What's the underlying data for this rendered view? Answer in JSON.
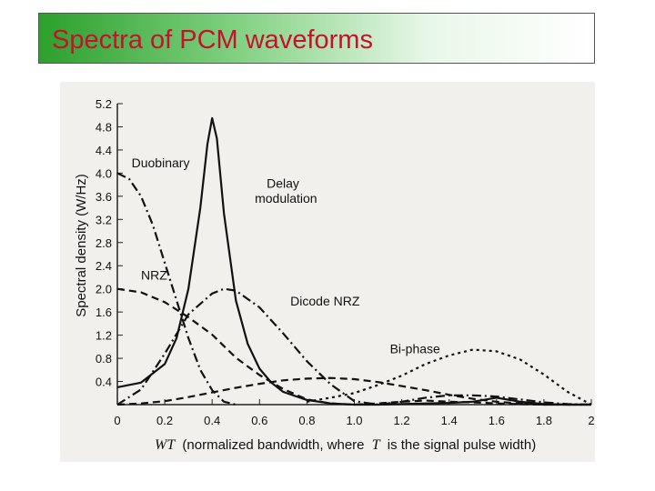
{
  "slide": {
    "title": "Spectra of PCM waveforms",
    "title_color": "#c8102e",
    "title_bg_accent": "#2ca02c"
  },
  "chart_data": {
    "type": "line",
    "title": "",
    "xlabel_prefix": "WT",
    "xlabel_prefix_italic_T": "T",
    "xlabel": "WT (normalized bandwidth, where T is the signal pulse width)",
    "xlabel_part1": "(normalized bandwidth, where",
    "xlabel_part2": "is the signal pulse width)",
    "ylabel": "Spectral density (W/Hz)",
    "xlim": [
      0,
      2
    ],
    "ylim": [
      0,
      5.2
    ],
    "x_ticks": [
      "0",
      "0.2",
      "0.4",
      "0.6",
      "0.8",
      "1.0",
      "1.2",
      "1.4",
      "1.6",
      "1.8",
      "2"
    ],
    "x_tick_values": [
      0,
      0.2,
      0.4,
      0.6,
      0.8,
      1.0,
      1.2,
      1.4,
      1.6,
      1.8,
      2.0
    ],
    "y_ticks": [
      "0.4",
      "0.8",
      "1.2",
      "1.6",
      "2.0",
      "2.4",
      "2.8",
      "3.2",
      "3.6",
      "4.0",
      "4.4",
      "4.8",
      "5.2"
    ],
    "y_tick_values": [
      0.4,
      0.8,
      1.2,
      1.6,
      2.0,
      2.4,
      2.8,
      3.2,
      3.6,
      4.0,
      4.4,
      4.8,
      5.2
    ],
    "grid": false,
    "legend": "inline labels",
    "series": [
      {
        "name": "NRZ",
        "style": "dashed",
        "x": [
          0,
          0.1,
          0.2,
          0.3,
          0.4,
          0.5,
          0.6,
          0.7,
          0.8,
          0.9,
          1.0,
          1.1,
          1.2,
          1.3,
          1.4,
          1.5,
          1.6,
          1.7,
          1.8,
          1.9,
          2.0
        ],
        "y": [
          2.0,
          1.94,
          1.77,
          1.51,
          1.21,
          0.81,
          0.51,
          0.27,
          0.09,
          0.02,
          0.0,
          0.02,
          0.05,
          0.07,
          0.05,
          0.04,
          0.02,
          0.01,
          0.0,
          0.0,
          0.0
        ]
      },
      {
        "name": "Duobinary",
        "style": "dash-dot",
        "x": [
          0,
          0.05,
          0.1,
          0.15,
          0.2,
          0.25,
          0.3,
          0.35,
          0.4,
          0.45,
          0.5
        ],
        "y": [
          4.0,
          3.9,
          3.6,
          3.1,
          2.45,
          1.8,
          1.15,
          0.6,
          0.25,
          0.05,
          0.0
        ]
      },
      {
        "name": "Delay modulation",
        "style": "solid",
        "x": [
          0,
          0.1,
          0.2,
          0.25,
          0.3,
          0.35,
          0.38,
          0.4,
          0.42,
          0.45,
          0.5,
          0.55,
          0.6,
          0.65,
          0.7,
          0.8,
          0.9,
          1.0,
          1.1,
          1.2,
          1.3,
          1.4,
          1.5,
          1.6,
          1.7,
          1.8,
          1.9,
          2.0
        ],
        "y": [
          0.3,
          0.38,
          0.7,
          1.15,
          2.0,
          3.4,
          4.5,
          4.95,
          4.6,
          3.3,
          1.8,
          1.05,
          0.62,
          0.38,
          0.22,
          0.08,
          0.02,
          0.0,
          0.0,
          0.01,
          0.02,
          0.03,
          0.05,
          0.12,
          0.05,
          0.01,
          0.0,
          0.0
        ]
      },
      {
        "name": "Dicode NRZ",
        "style": "dash-dot",
        "x": [
          0,
          0.1,
          0.2,
          0.3,
          0.4,
          0.45,
          0.5,
          0.6,
          0.7,
          0.8,
          0.9,
          1.0,
          1.1,
          1.2,
          1.3,
          1.4,
          1.5,
          1.6,
          1.7,
          1.8,
          1.9,
          2.0
        ],
        "y": [
          0.0,
          0.26,
          0.88,
          1.56,
          1.92,
          2.0,
          1.97,
          1.68,
          1.23,
          0.75,
          0.35,
          0.06,
          0.0,
          0.05,
          0.12,
          0.16,
          0.16,
          0.14,
          0.09,
          0.04,
          0.01,
          0.0
        ]
      },
      {
        "name": "Bi-phase",
        "style": "dashed",
        "x": [
          0,
          0.1,
          0.2,
          0.3,
          0.4,
          0.5,
          0.6,
          0.7,
          0.8,
          0.9,
          1.0,
          1.1,
          1.2,
          1.3,
          1.4,
          1.5,
          1.6,
          1.7,
          1.8,
          1.9,
          2.0
        ],
        "y": [
          0.0,
          0.02,
          0.06,
          0.13,
          0.21,
          0.29,
          0.36,
          0.42,
          0.45,
          0.46,
          0.44,
          0.39,
          0.32,
          0.25,
          0.17,
          0.1,
          0.05,
          0.02,
          0.0,
          0.0,
          0.0
        ]
      },
      {
        "name": "",
        "style": "dotted",
        "x": [
          0.8,
          0.9,
          1.0,
          1.1,
          1.2,
          1.3,
          1.4,
          1.5,
          1.6,
          1.7,
          1.8,
          1.9,
          2.0
        ],
        "y": [
          0.05,
          0.12,
          0.2,
          0.34,
          0.5,
          0.7,
          0.85,
          0.95,
          0.92,
          0.78,
          0.52,
          0.22,
          0.0
        ]
      }
    ],
    "labels": [
      {
        "text": "Duobinary",
        "x": 0.06,
        "y": 4.1
      },
      {
        "text": "Delay",
        "x": 0.63,
        "y": 3.75
      },
      {
        "text": "modulation",
        "x": 0.58,
        "y": 3.49
      },
      {
        "text": "NRZ",
        "x": 0.1,
        "y": 2.16
      },
      {
        "text": "Dicode NRZ",
        "x": 0.73,
        "y": 1.71
      },
      {
        "text": "Bi-phase",
        "x": 1.15,
        "y": 0.89
      }
    ]
  }
}
